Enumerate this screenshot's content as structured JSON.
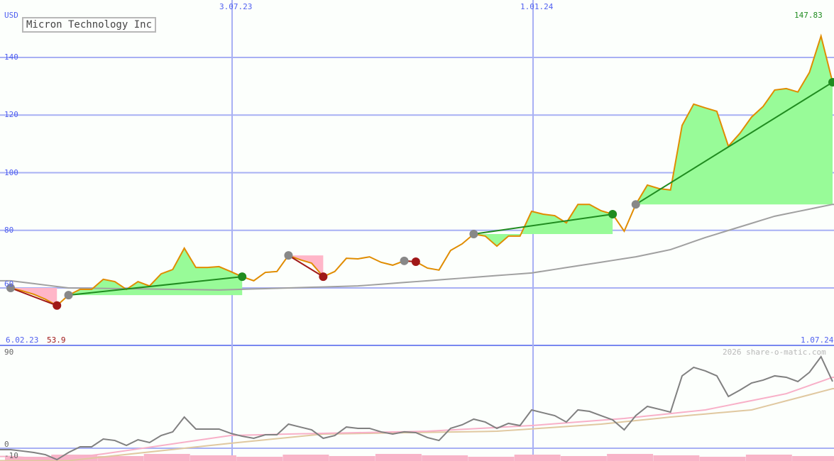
{
  "chart_data": [
    {
      "type": "line",
      "title": "Micron Technology Inc",
      "ylabel": "USD",
      "ylim": [
        40,
        158
      ],
      "yticks": [
        "140",
        "120",
        "100",
        "80",
        "60"
      ],
      "ytick_values": [
        140,
        120,
        100,
        80,
        60
      ],
      "x_ticks_top": [
        "3.07.23",
        "1.01.24"
      ],
      "x_start_label": "6.02.23",
      "x_end_label": "1.07.24",
      "start_low_label": "53.9",
      "high_label": "147.83",
      "grid": true,
      "price": [
        60,
        59.0,
        57.8,
        56.1,
        53.9,
        57.5,
        59.5,
        59.5,
        63.0,
        62.2,
        59.5,
        62.2,
        60.7,
        64.9,
        66.4,
        73.8,
        67.1,
        67.1,
        67.4,
        65.7,
        63.9,
        62.5,
        65.4,
        65.7,
        71.3,
        69.8,
        68.6,
        63.9,
        65.7,
        70.3,
        70.1,
        70.8,
        68.9,
        67.9,
        69.4,
        69.1,
        66.9,
        66.2,
        73.0,
        75.3,
        78.7,
        78.0,
        74.5,
        78.0,
        78.0,
        86.6,
        85.6,
        85.1,
        82.6,
        89.0,
        89.0,
        86.8,
        85.6,
        79.7,
        89.0,
        95.7,
        94.5,
        94.0,
        116.4,
        123.8,
        122.5,
        121.3,
        109.2,
        113.7,
        119.3,
        123.0,
        128.7,
        129.2,
        128.0,
        134.8,
        147.4,
        131.4
      ],
      "moving_average": {
        "index": [
          0,
          5,
          18,
          30,
          45,
          54,
          57,
          60,
          66,
          71
        ],
        "values": [
          62.5,
          60,
          59.3,
          60.7,
          65.2,
          70.8,
          73.3,
          77.5,
          84.9,
          89.0
        ]
      },
      "signals": [
        {
          "from": 0,
          "to": 4,
          "direction": "down"
        },
        {
          "from": 5,
          "to": 20,
          "direction": "up"
        },
        {
          "from": 24,
          "to": 27,
          "direction": "down"
        },
        {
          "from": 34,
          "to": 35,
          "direction": "down"
        },
        {
          "from": 40,
          "to": 52,
          "direction": "up"
        },
        {
          "from": 54,
          "to": 71,
          "direction": "up"
        }
      ],
      "colors": {
        "price": "#e08c00",
        "ma": "#a0a0a0",
        "up": "#208c20",
        "down": "#a01818",
        "up_fill": "#98fb98",
        "down_fill": "#ffb6c8",
        "grid": "#8890f0"
      }
    },
    {
      "type": "line",
      "ylim": [
        -12,
        100
      ],
      "yticks": [
        "90",
        "0",
        "-10"
      ],
      "ytick_values": [
        90,
        0,
        -10
      ],
      "credit": "2026 share-o-matic.com",
      "oscillator": [
        -1.4,
        -2.7,
        -4.1,
        -6.2,
        -11.0,
        -4.1,
        1.4,
        1.4,
        8.9,
        7.5,
        2.7,
        8.2,
        5.5,
        12.3,
        15.8,
        30.1,
        18.5,
        18.5,
        18.5,
        14.4,
        11.6,
        9.6,
        13.0,
        13.0,
        23.3,
        20.5,
        17.8,
        9.6,
        12.3,
        20.5,
        19.2,
        19.2,
        15.8,
        13.7,
        15.8,
        15.1,
        10.3,
        7.5,
        19.2,
        22.6,
        28.1,
        25.3,
        19.2,
        24.0,
        21.9,
        37.0,
        34.2,
        31.5,
        25.3,
        37.0,
        35.6,
        31.5,
        27.4,
        17.8,
        31.5,
        40.4,
        37.7,
        34.9,
        69.9,
        78.1,
        74.7,
        69.9,
        50.0,
        56.2,
        63.0,
        65.8,
        69.9,
        68.5,
        64.4,
        73.3,
        88.4,
        64.4
      ],
      "signal_line": {
        "index": [
          0,
          4,
          8,
          19,
          24,
          36,
          45,
          53,
          60,
          67,
          71
        ],
        "values": [
          -8,
          -11,
          -5.5,
          12.3,
          13.7,
          16.4,
          21.9,
          28.8,
          37.0,
          52.7,
          68.5
        ]
      },
      "slow_line": {
        "index": [
          5,
          19,
          27,
          42,
          51,
          57,
          64,
          71
        ],
        "values": [
          -12,
          4.8,
          13.7,
          16.4,
          23.3,
          30.1,
          37.0,
          57.5
        ]
      },
      "colors": {
        "oscillator": "#808080",
        "signal_line": "#f8b0c8",
        "slow_line": "#e0c8a0",
        "histogram": "#f8b4c8"
      }
    }
  ]
}
